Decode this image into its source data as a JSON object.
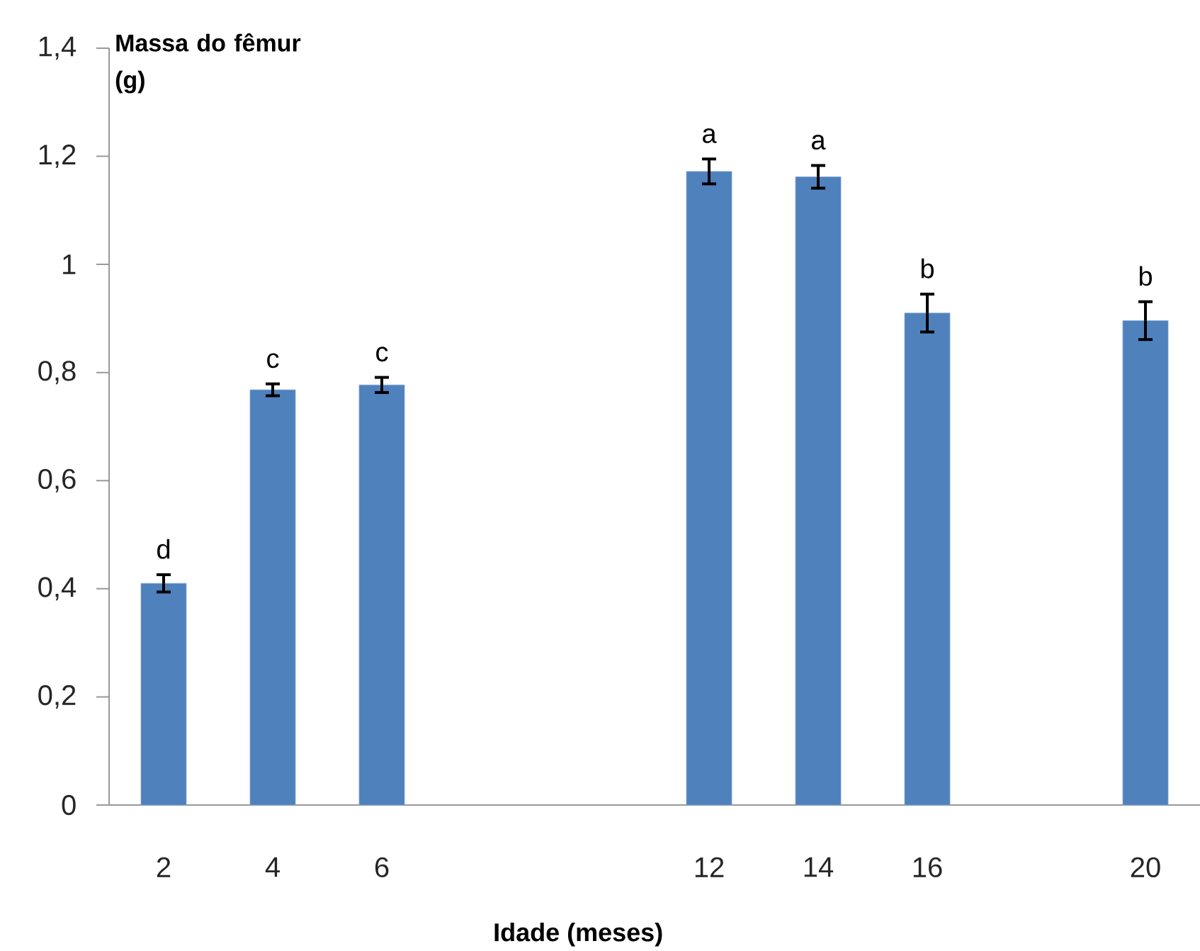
{
  "chart_data": {
    "type": "bar",
    "xlabel": "Idade (meses)",
    "ylabel": "Massa do fêmur (g)",
    "categories": [
      "2",
      "4",
      "6",
      null,
      null,
      "12",
      "14",
      "16",
      null,
      "20"
    ],
    "values": [
      0.41,
      0.768,
      0.777,
      null,
      null,
      1.172,
      1.162,
      0.91,
      null,
      0.896
    ],
    "errors": [
      0.016,
      0.011,
      0.014,
      null,
      null,
      0.023,
      0.021,
      0.035,
      null,
      0.035
    ],
    "color": "#4f81bd",
    "ylim": [
      0,
      1.4
    ],
    "yticks": [
      0,
      {
        "value": 0.2,
        "label": "0,2"
      },
      {
        "value": 0.4,
        "label": "0,4"
      },
      {
        "value": 0.6,
        "label": "0,6"
      },
      {
        "value": 0.8,
        "label": "0,8"
      },
      1,
      {
        "value": 1.2,
        "label": "1,2"
      },
      {
        "value": 1.4,
        "label": "1,4"
      }
    ],
    "annotations": [
      {
        "text": "d",
        "x": "2",
        "y": 0.41
      },
      {
        "text": "c",
        "x": "4",
        "y": 0.768
      },
      {
        "text": "c",
        "x": "6",
        "y": 0.777
      },
      {
        "text": "a",
        "x": "12",
        "y": 1.172
      },
      {
        "text": "a",
        "x": "14",
        "y": 1.162
      },
      {
        "text": "b",
        "x": "16",
        "y": 0.91
      },
      {
        "text": "b",
        "x": "20",
        "y": 0.896
      }
    ]
  }
}
